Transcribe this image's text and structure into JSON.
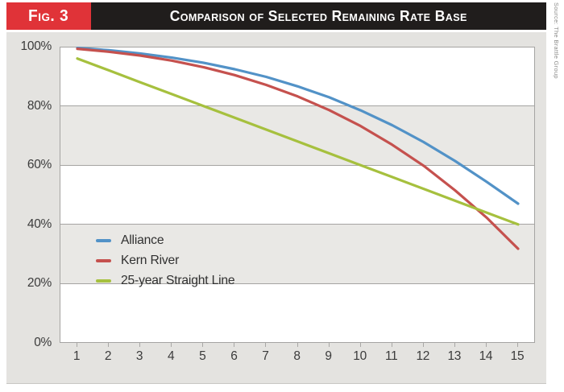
{
  "header": {
    "fig_label": "Fig. 3",
    "title": "Comparison of Selected Remaining Rate Base",
    "source": "Source: The Brattle Group"
  },
  "colors": {
    "badge_red": "#e03338",
    "title_bar_black": "#201d1c",
    "panel_gray": "#e4e3e0",
    "band_gray": "#e9e8e5",
    "gridline_gray": "#a5a4a2",
    "axis_text": "#3b3b3b",
    "alliance_blue": "#5292c7",
    "kern_river_red": "#c5514e",
    "straight_line_green": "#a6c03e"
  },
  "chart_data": {
    "type": "line",
    "title": "Comparison of Selected Remaining Rate Base",
    "xlabel": "",
    "ylabel": "",
    "x": [
      1,
      2,
      3,
      4,
      5,
      6,
      7,
      8,
      9,
      10,
      11,
      12,
      13,
      14,
      15
    ],
    "y_ticks": [
      "100%",
      "80%",
      "60%",
      "40%",
      "20%",
      "0%"
    ],
    "ylim": [
      0,
      100
    ],
    "grid": "horizontal gridlines every 20% with alternating white/gray bands",
    "legend_position": "inside-left-middle",
    "series": [
      {
        "name": "Alliance",
        "color": "#5292c7",
        "values": [
          99.6,
          98.8,
          97.7,
          96.3,
          94.6,
          92.4,
          89.8,
          86.6,
          82.9,
          78.5,
          73.5,
          67.8,
          61.4,
          54.4,
          47.0
        ]
      },
      {
        "name": "Kern River",
        "color": "#c5514e",
        "values": [
          99.3,
          98.3,
          97.0,
          95.3,
          93.1,
          90.4,
          87.1,
          83.2,
          78.6,
          73.2,
          66.9,
          59.8,
          51.5,
          42.3,
          31.8
        ]
      },
      {
        "name": "25-year Straight Line",
        "color": "#a6c03e",
        "values": [
          96,
          92,
          88,
          84,
          80,
          76,
          72,
          68,
          64,
          60,
          56,
          52,
          48,
          44,
          40
        ]
      }
    ]
  }
}
